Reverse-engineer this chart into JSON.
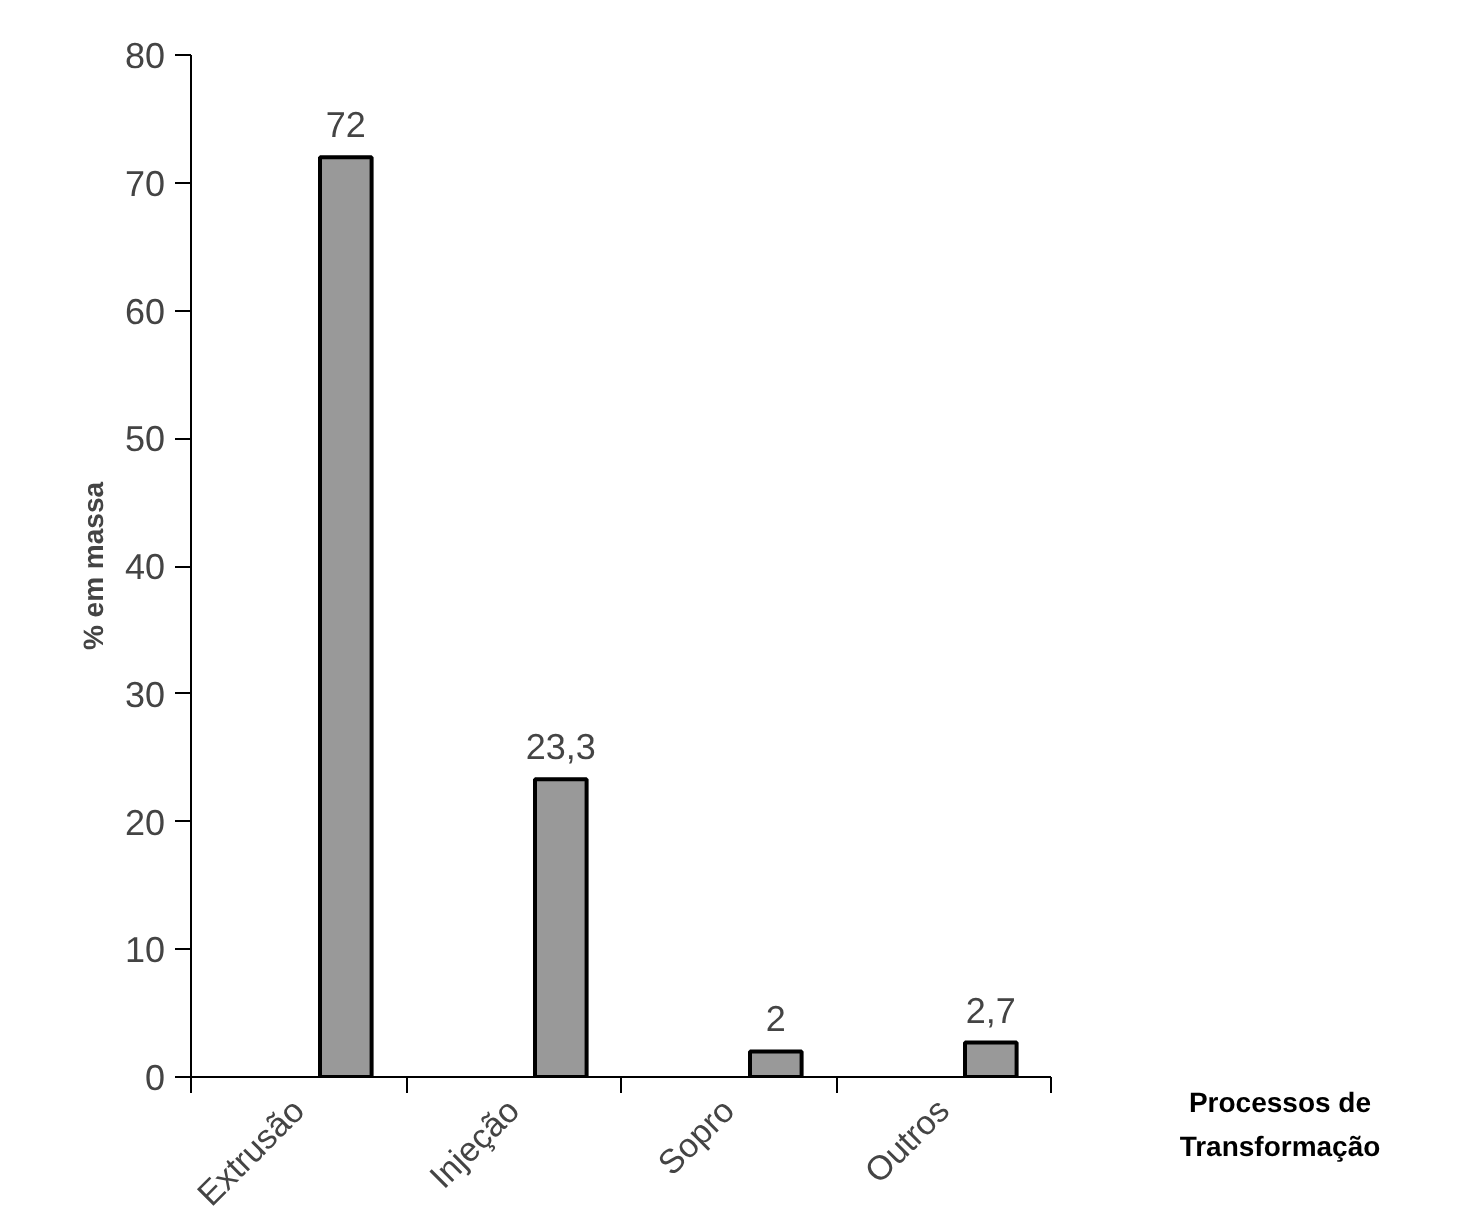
{
  "chart_data": {
    "type": "bar",
    "categories": [
      "Extrusão",
      "Injeção",
      "Sopro",
      "Outros"
    ],
    "values": [
      72,
      23.3,
      2,
      2.7
    ],
    "value_labels": [
      "72",
      "23,3",
      "2",
      "2,7"
    ],
    "color": "#999999",
    "ylabel": "% em massa",
    "xlabel": "Processos de Transformação",
    "ylim": [
      0,
      80
    ],
    "yticks": [
      0,
      10,
      20,
      30,
      40,
      50,
      60,
      70,
      80
    ],
    "grid": false
  }
}
